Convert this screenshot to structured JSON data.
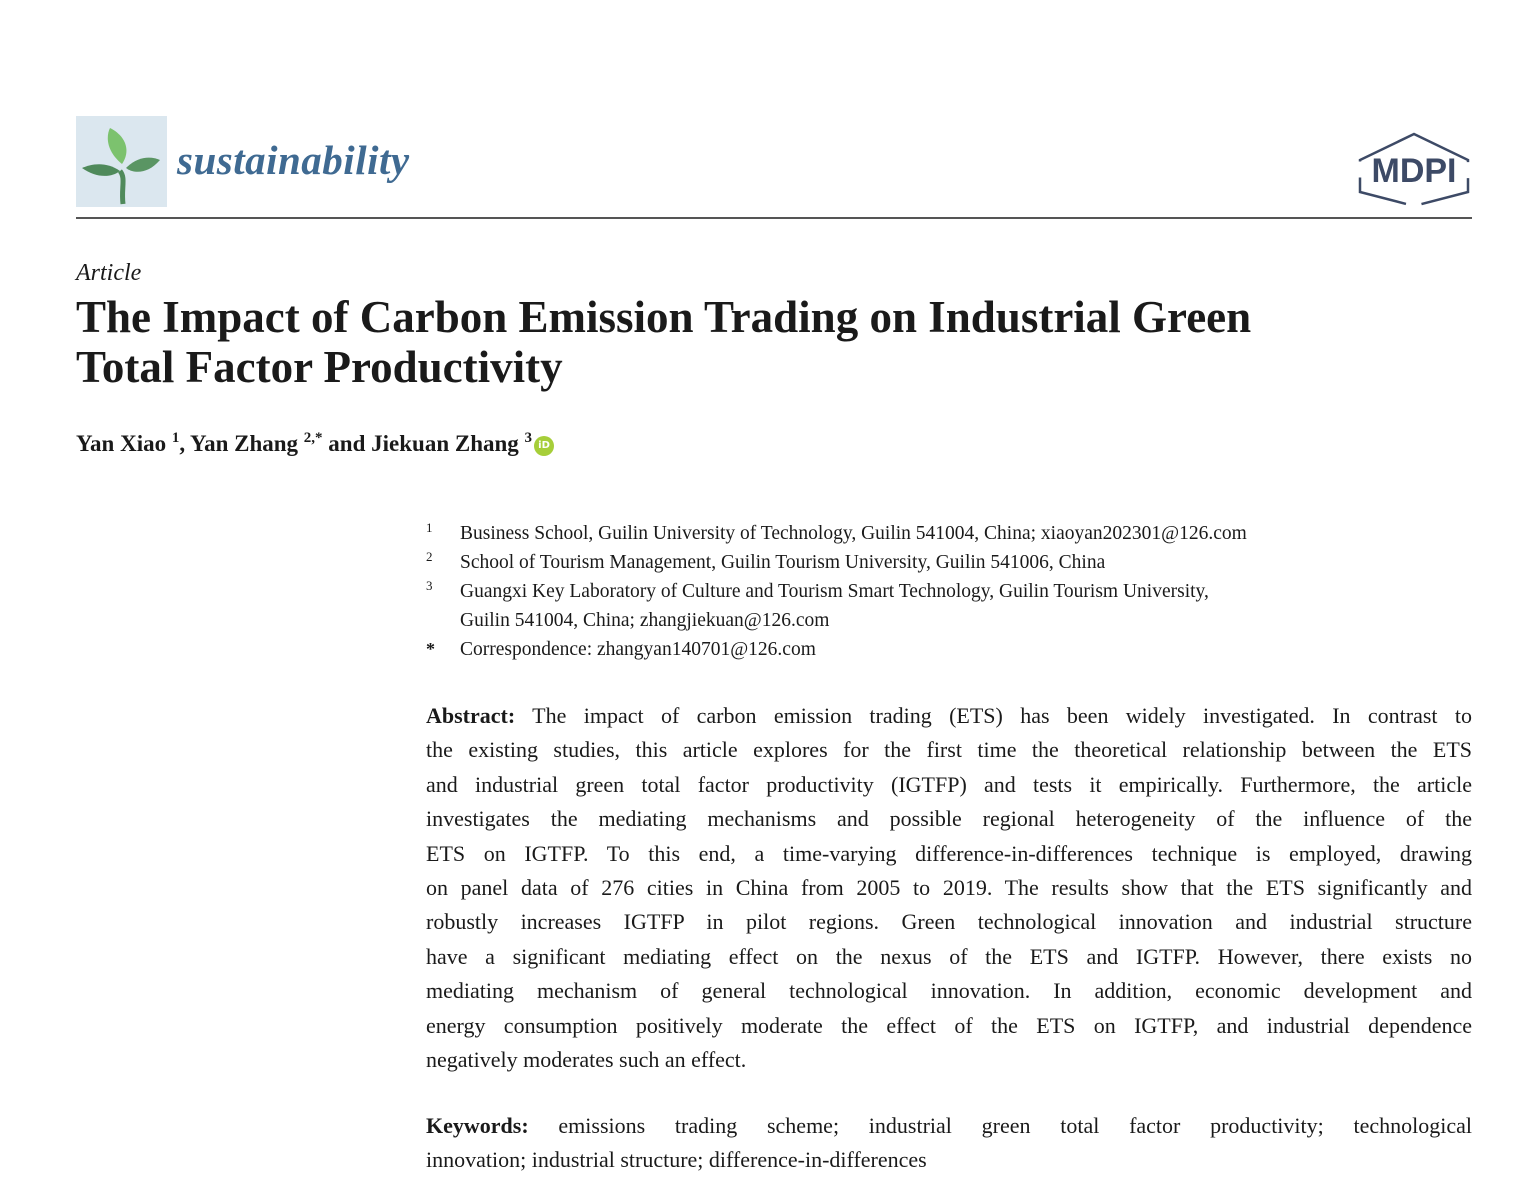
{
  "header": {
    "journal": "sustainability",
    "publisher_logo": "MDPI"
  },
  "article_type": "Article",
  "title_lines": [
    "The Impact of Carbon Emission Trading on Industrial Green",
    "Total Factor Productivity"
  ],
  "authors": [
    {
      "name": "Yan Xiao",
      "sup": "1"
    },
    {
      "name": "Yan Zhang",
      "sup": "2,*"
    },
    {
      "name": "Jiekuan Zhang",
      "sup": "3"
    }
  ],
  "author_separators": [
    ", ",
    " and "
  ],
  "orcid_label": "iD",
  "affiliations": [
    {
      "n": "1",
      "lines": [
        "Business School, Guilin University of Technology, Guilin 541004, China; xiaoyan202301@126.com"
      ]
    },
    {
      "n": "2",
      "lines": [
        "School of Tourism Management, Guilin Tourism University, Guilin 541006, China"
      ]
    },
    {
      "n": "3",
      "lines": [
        "Guangxi Key Laboratory of Culture and Tourism Smart Technology, Guilin Tourism University,",
        "Guilin 541004, China; zhangjiekuan@126.com"
      ]
    },
    {
      "n": "*",
      "lines": [
        "Correspondence: zhangyan140701@126.com"
      ]
    }
  ],
  "abstract": {
    "label": "Abstract:",
    "lines": [
      "The impact of carbon emission trading (ETS) has been widely investigated. In contrast to",
      "the existing studies, this article explores for the first time the theoretical relationship between the ETS",
      "and industrial green total factor productivity (IGTFP) and tests it empirically. Furthermore, the article",
      "investigates the mediating mechanisms and possible regional heterogeneity of the influence of the",
      "ETS on IGTFP. To this end, a time-varying difference-in-differences technique is employed, drawing",
      "on panel data of 276 cities in China from 2005 to 2019. The results show that the ETS significantly and",
      "robustly increases IGTFP in pilot regions. Green technological innovation and industrial structure",
      "have a significant mediating effect on the nexus of the ETS and IGTFP. However, there exists no",
      "mediating mechanism of general technological innovation. In addition, economic development and",
      "energy consumption positively moderate the effect of the ETS on IGTFP, and industrial dependence",
      "negatively moderates such an effect."
    ]
  },
  "keywords": {
    "label": "Keywords:",
    "lines": [
      "emissions trading scheme; industrial green total factor productivity; technological",
      "innovation; industrial structure; difference-in-differences"
    ]
  },
  "colors": {
    "journal": "#3f6a92",
    "mdpi": "#3d4a66",
    "orcid": "#a6ce39"
  }
}
